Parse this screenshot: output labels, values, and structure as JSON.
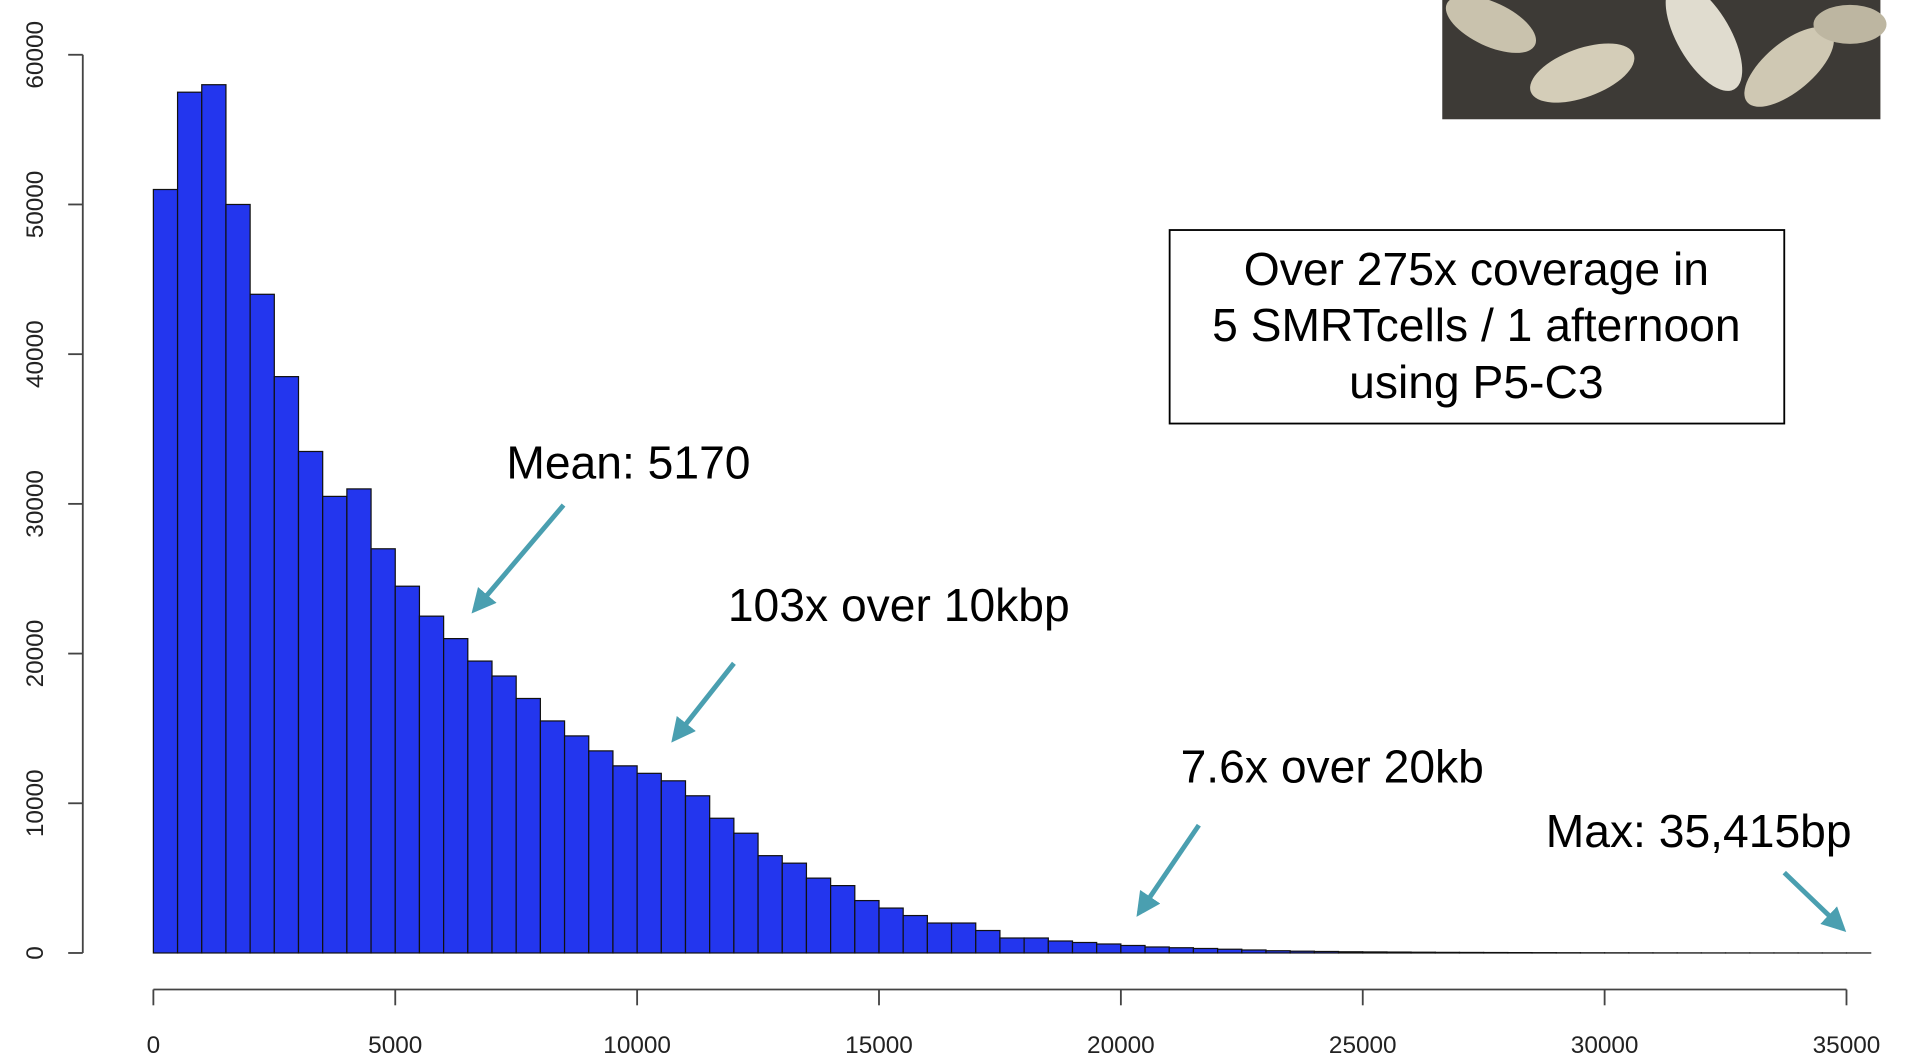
{
  "chart_data": {
    "type": "histogram",
    "bins": [
      0,
      500,
      1000,
      1500,
      2000,
      2500,
      3000,
      3500,
      4000,
      4500,
      5000,
      5500,
      6000,
      6500,
      7000,
      7500,
      8000,
      8500,
      9000,
      9500,
      10000,
      10500,
      11000,
      11500,
      12000,
      12500,
      13000,
      13500,
      14000,
      14500,
      15000,
      15500,
      16000,
      16500,
      17000,
      17500,
      18000,
      18500,
      19000,
      19500,
      20000,
      20500,
      21000,
      21500,
      22000,
      22500,
      23000,
      23500,
      24000,
      24500,
      25000,
      25500,
      26000,
      26500,
      27000,
      27500,
      28000,
      28500,
      29000,
      29500,
      30000,
      30500,
      31000,
      31500,
      32000,
      32500,
      33000,
      33500,
      34000,
      34500,
      35000,
      35500
    ],
    "values": [
      51000,
      57500,
      58000,
      50000,
      44000,
      38500,
      33500,
      30500,
      31000,
      27000,
      24500,
      22500,
      21000,
      19500,
      18500,
      17000,
      15500,
      14500,
      13500,
      12500,
      12000,
      11500,
      10500,
      9000,
      8000,
      6500,
      6000,
      5000,
      4500,
      3500,
      3000,
      2500,
      2000,
      2000,
      1500,
      1000,
      1000,
      800,
      700,
      600,
      500,
      400,
      350,
      300,
      250,
      200,
      150,
      120,
      100,
      80,
      70,
      60,
      50,
      40,
      35,
      30,
      25,
      20,
      15,
      12,
      10,
      8,
      6,
      5,
      4,
      3,
      2,
      2,
      1,
      1,
      1
    ],
    "color": "#2336ee",
    "xlim": [
      0,
      35500
    ],
    "xticks": [
      0,
      5000,
      10000,
      15000,
      20000,
      25000,
      30000,
      35000
    ],
    "ylim": [
      0,
      60000
    ],
    "yticks": [
      0,
      10000,
      20000,
      30000,
      40000,
      50000,
      60000
    ],
    "annotations": [
      "Mean: 5170",
      "103x over 10kbp",
      "7.6x over 20kb",
      "Max: 35,415bp"
    ],
    "box_text": [
      "Over 275x coverage in",
      "5 SMRTcells / 1 afternoon",
      "using P5-C3"
    ]
  }
}
